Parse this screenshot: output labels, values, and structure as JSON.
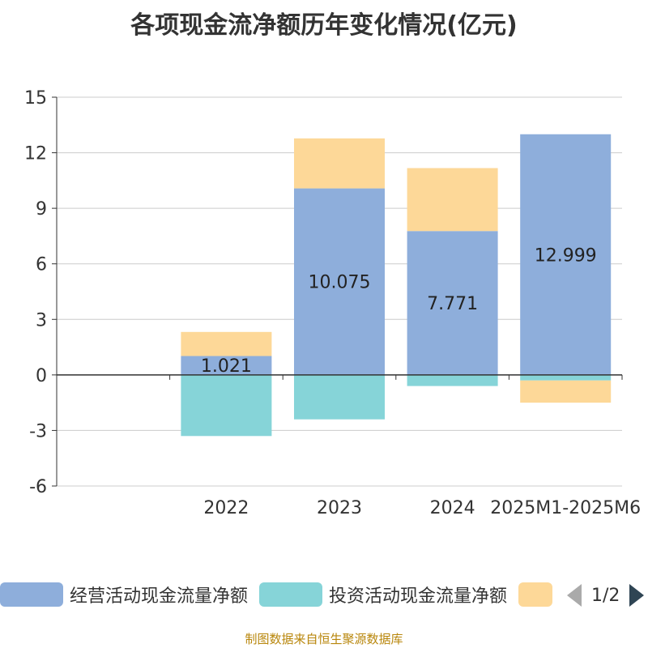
{
  "chart_data": {
    "type": "bar",
    "stacked": true,
    "title": "各项现金流净额历年变化情况(亿元)",
    "categories": [
      "2022",
      "2023",
      "2024",
      "2025M1-2025M6"
    ],
    "ylim": [
      -6,
      15
    ],
    "yticks": [
      15,
      12,
      9,
      6,
      3,
      0,
      -3,
      -6
    ],
    "grid": true,
    "series": [
      {
        "name": "经营活动现金流量净额",
        "color": "#8eaedb",
        "values": [
          1.021,
          10.075,
          7.771,
          12.999
        ],
        "labels": [
          "1.021",
          "10.075",
          "7.771",
          "12.999"
        ]
      },
      {
        "name": "投资活动现金流量净额",
        "color": "#86d4d8",
        "values": [
          -3.3,
          -2.4,
          -0.6,
          -0.3
        ]
      },
      {
        "name": "",
        "color": "#fdd898",
        "values": [
          1.3,
          2.7,
          3.4,
          -1.2
        ]
      }
    ],
    "legend_position": "bottom"
  },
  "legend": {
    "items": [
      {
        "label": "经营活动现金流量净额",
        "color": "#8eaedb"
      },
      {
        "label": "投资活动现金流量净额",
        "color": "#86d4d8"
      },
      {
        "label": "",
        "color": "#fdd898"
      }
    ],
    "page_indicator": "1/2"
  },
  "footer": {
    "source": "制图数据来自恒生聚源数据库"
  }
}
